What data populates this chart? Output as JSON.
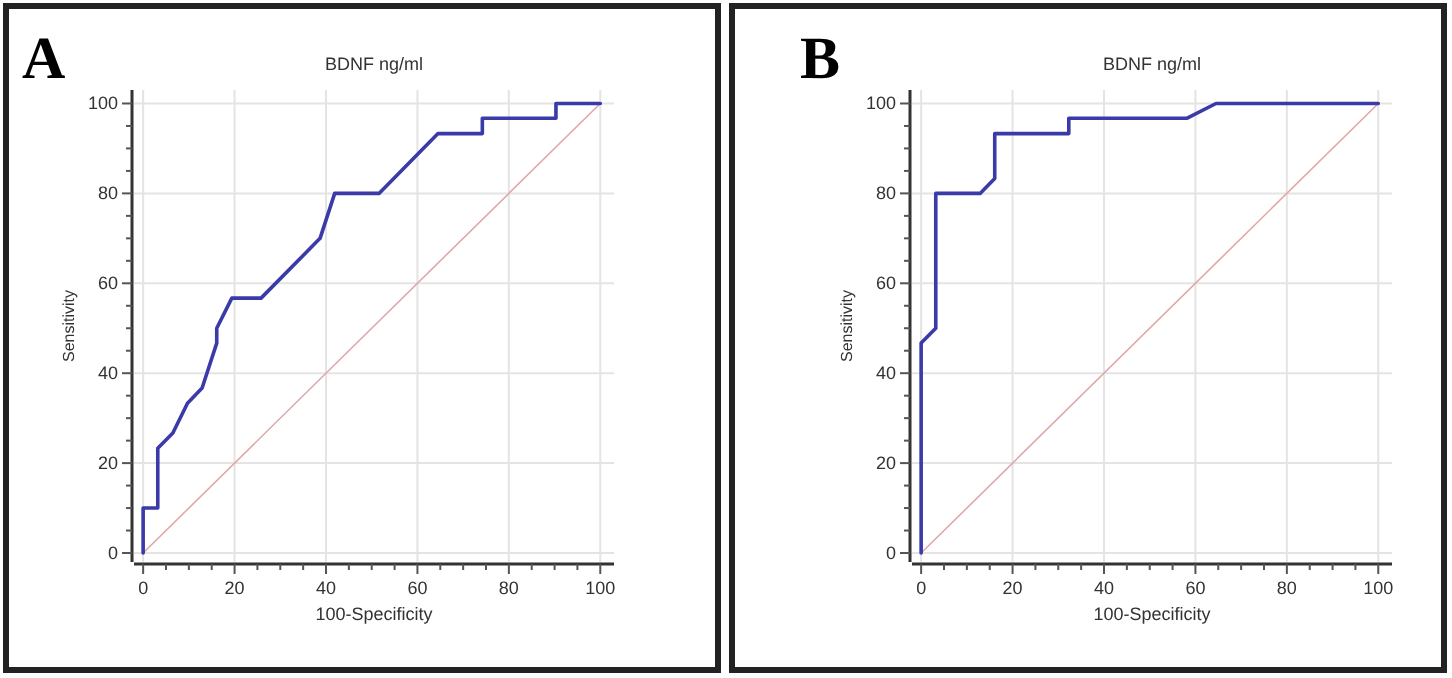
{
  "chart_data": [
    {
      "type": "line",
      "title": "BDNF ng/ml",
      "xlabel": "100-Specificity",
      "ylabel": "Sensitivity",
      "annotations": [
        "A"
      ],
      "xlim": [
        -2,
        103
      ],
      "ylim": [
        -2,
        103
      ],
      "xticks": [
        0,
        {
          "value": 5,
          "label": null
        },
        {
          "value": 10,
          "label": null
        },
        {
          "value": 15,
          "label": null
        },
        20,
        {
          "value": 25,
          "label": null
        },
        {
          "value": 30,
          "label": null
        },
        {
          "value": 35,
          "label": null
        },
        40,
        {
          "value": 45,
          "label": null
        },
        {
          "value": 50,
          "label": null
        },
        {
          "value": 55,
          "label": null
        },
        60,
        {
          "value": 65,
          "label": null
        },
        {
          "value": 70,
          "label": null
        },
        {
          "value": 75,
          "label": null
        },
        80,
        {
          "value": 85,
          "label": null
        },
        {
          "value": 90,
          "label": null
        },
        {
          "value": 95,
          "label": null
        },
        100
      ],
      "yticks": [
        0,
        {
          "value": 5,
          "label": null
        },
        {
          "value": 10,
          "label": null
        },
        {
          "value": 15,
          "label": null
        },
        20,
        {
          "value": 25,
          "label": null
        },
        {
          "value": 30,
          "label": null
        },
        {
          "value": 35,
          "label": null
        },
        40,
        {
          "value": 45,
          "label": null
        },
        {
          "value": 50,
          "label": null
        },
        {
          "value": 55,
          "label": null
        },
        60,
        {
          "value": 65,
          "label": null
        },
        {
          "value": 70,
          "label": null
        },
        {
          "value": 75,
          "label": null
        },
        80,
        {
          "value": 85,
          "label": null
        },
        {
          "value": 90,
          "label": null
        },
        {
          "value": 95,
          "label": null
        },
        100
      ],
      "grid": true,
      "marker": "none",
      "series": [
        {
          "color": "#3a3aa8",
          "x": [
            0,
            0,
            3.2,
            3.2,
            6.5,
            9.7,
            12.9,
            16.1,
            16.1,
            19.4,
            25.8,
            38.7,
            41.9,
            51.6,
            64.5,
            74.2,
            74.2,
            90.3,
            90.3,
            100
          ],
          "values": [
            0,
            10,
            10,
            23.3,
            26.7,
            33.3,
            36.7,
            46.7,
            50,
            56.7,
            56.7,
            70,
            80,
            80,
            93.3,
            93.3,
            96.7,
            96.7,
            100,
            100
          ]
        },
        {
          "color": "#e0a8a8",
          "x": [
            0,
            100
          ],
          "values": [
            0,
            100
          ]
        }
      ]
    },
    {
      "type": "line",
      "title": "BDNF ng/ml",
      "xlabel": "100-Specificity",
      "ylabel": "Sensitivity",
      "annotations": [
        "B"
      ],
      "xlim": [
        -2,
        103
      ],
      "ylim": [
        -2,
        103
      ],
      "xticks": [
        0,
        {
          "value": 5,
          "label": null
        },
        {
          "value": 10,
          "label": null
        },
        {
          "value": 15,
          "label": null
        },
        20,
        {
          "value": 25,
          "label": null
        },
        {
          "value": 30,
          "label": null
        },
        {
          "value": 35,
          "label": null
        },
        40,
        {
          "value": 45,
          "label": null
        },
        {
          "value": 50,
          "label": null
        },
        {
          "value": 55,
          "label": null
        },
        60,
        {
          "value": 65,
          "label": null
        },
        {
          "value": 70,
          "label": null
        },
        {
          "value": 75,
          "label": null
        },
        80,
        {
          "value": 85,
          "label": null
        },
        {
          "value": 90,
          "label": null
        },
        {
          "value": 95,
          "label": null
        },
        100
      ],
      "yticks": [
        0,
        {
          "value": 5,
          "label": null
        },
        {
          "value": 10,
          "label": null
        },
        {
          "value": 15,
          "label": null
        },
        20,
        {
          "value": 25,
          "label": null
        },
        {
          "value": 30,
          "label": null
        },
        {
          "value": 35,
          "label": null
        },
        40,
        {
          "value": 45,
          "label": null
        },
        {
          "value": 50,
          "label": null
        },
        {
          "value": 55,
          "label": null
        },
        60,
        {
          "value": 65,
          "label": null
        },
        {
          "value": 70,
          "label": null
        },
        {
          "value": 75,
          "label": null
        },
        80,
        {
          "value": 85,
          "label": null
        },
        {
          "value": 90,
          "label": null
        },
        {
          "value": 95,
          "label": null
        },
        100
      ],
      "grid": true,
      "marker": "none",
      "series": [
        {
          "color": "#3a3aa8",
          "x": [
            0,
            0,
            3.2,
            3.2,
            12.9,
            16.1,
            16.1,
            32.3,
            32.3,
            58.1,
            64.5,
            100
          ],
          "values": [
            0,
            46.7,
            50,
            80,
            80,
            83.3,
            93.3,
            93.3,
            96.7,
            96.7,
            100,
            100
          ]
        },
        {
          "color": "#e0a8a8",
          "x": [
            0,
            100
          ],
          "values": [
            0,
            100
          ]
        }
      ]
    }
  ]
}
